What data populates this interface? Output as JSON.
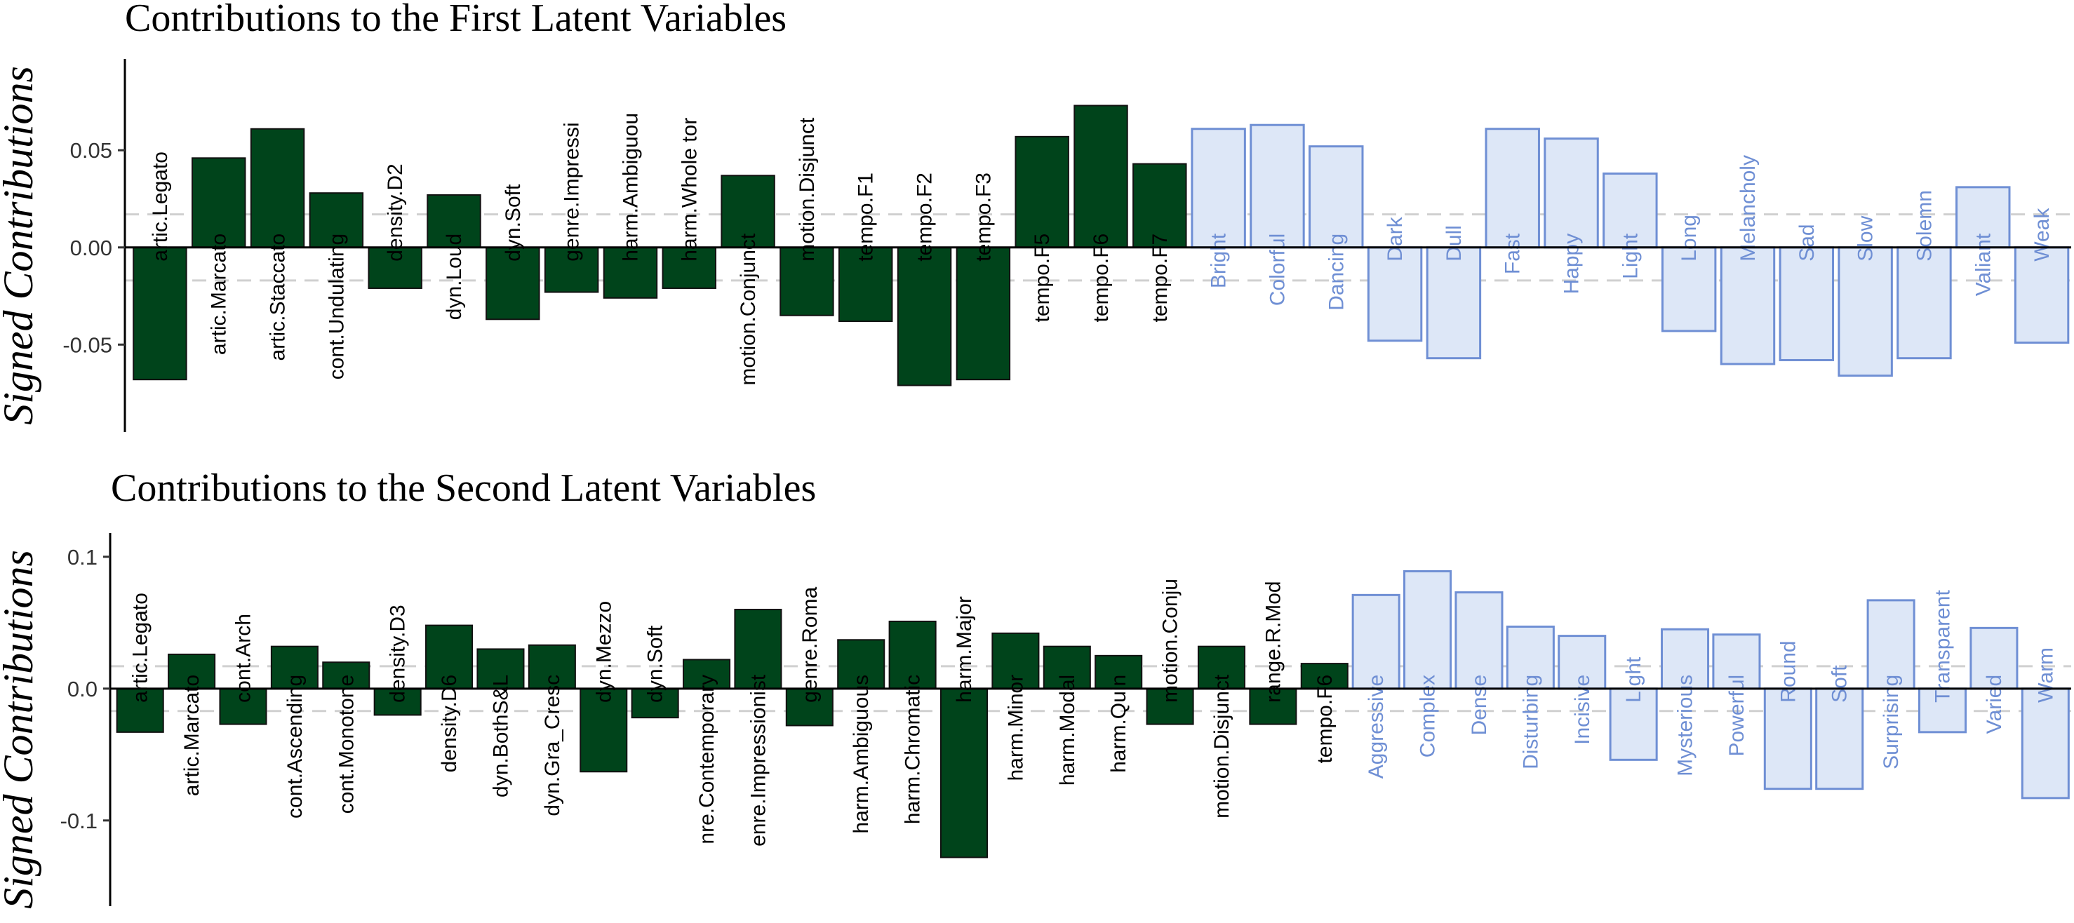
{
  "ylabel": "Signed Contributions",
  "colors": {
    "design_fill": "#00441b",
    "design_stroke": "#111111",
    "adjective_fill": "#dde7f7",
    "adjective_stroke": "#6f8fd4",
    "design_label": "#000000",
    "adjective_label": "#6f8fd4",
    "threshold_line": "#d0d0d0"
  },
  "chart_data": [
    {
      "type": "bar",
      "title": "Contributions to the First Latent Variables",
      "ylabel": "Signed Contributions",
      "xlabel": "",
      "ylim": [
        -0.095,
        0.097
      ],
      "yticks": [
        -0.05,
        0.0,
        0.05
      ],
      "ytick_labels": [
        "-0.05",
        "0.00",
        "0.05"
      ],
      "threshold": 0.017,
      "series": [
        {
          "group": "design",
          "categories": [
            "artic.Legato",
            "artic.Marcato",
            "artic.Staccato",
            "cont.Undulating",
            "density.D2",
            "dyn.Loud",
            "dyn.Soft",
            "genre.Impressi",
            "harm.Ambiguou",
            "harm.Whole tor",
            "motion.Conjunct",
            "motion.Disjunct",
            "tempo.F1",
            "tempo.F2",
            "tempo.F3",
            "tempo.F5",
            "tempo.F6",
            "tempo.F7"
          ],
          "values": [
            -0.068,
            0.046,
            0.061,
            0.028,
            -0.021,
            0.027,
            -0.037,
            -0.023,
            -0.026,
            -0.021,
            0.037,
            -0.035,
            -0.038,
            -0.071,
            -0.068,
            0.057,
            0.073,
            0.043
          ]
        },
        {
          "group": "adjectives",
          "categories": [
            "Bright",
            "Colorful",
            "Dancing",
            "Dark",
            "Dull",
            "Fast",
            "Happy",
            "Light",
            "Long",
            "Melancholy",
            "Sad",
            "Slow",
            "Solemn",
            "Valiant",
            "Weak"
          ],
          "values": [
            0.061,
            0.063,
            0.052,
            -0.048,
            -0.057,
            0.061,
            0.056,
            0.038,
            -0.043,
            -0.06,
            -0.058,
            -0.066,
            -0.057,
            0.031,
            -0.049
          ]
        }
      ]
    },
    {
      "type": "bar",
      "title": "Contributions to the Second Latent Variables",
      "ylabel": "Signed Contributions",
      "xlabel": "",
      "ylim": [
        -0.165,
        0.118
      ],
      "yticks": [
        -0.1,
        0.0,
        0.1
      ],
      "ytick_labels": [
        "-0.1",
        "0.0",
        "0.1"
      ],
      "threshold": 0.017,
      "series": [
        {
          "group": "design",
          "categories": [
            "artic.Legato",
            "artic.Marcato",
            "cont.Arch",
            "cont.Ascending",
            "cont.Monotone",
            "density.D3",
            "density.D6",
            "dyn.BothS&L",
            "dyn.Gra_Cresc",
            "dyn.Mezzo",
            "dyn.Soft",
            "genre.Contemporary",
            "genre.Impressionist",
            "genre.Roma",
            "harm.Ambiguous",
            "harm.Chromatic",
            "harm.Major",
            "harm.Minor",
            "harm.Modal",
            "harm.Quin",
            "motion.Conju",
            "motion.Disjunct",
            "range.R.Mod",
            "tempo.F6"
          ],
          "display": [
            "artic.Legato",
            "artic.Marcato",
            "cont.Arch",
            "cont.Ascending",
            "cont.Monotone",
            "density.D3",
            "density.D6",
            "dyn.BothS&L",
            "dyn.Gra_Cresc",
            "dyn.Mezzo",
            "dyn.Soft",
            "nre.Contemporary",
            "enre.Impressionist",
            "genre.Roma",
            "harm.Ambiguous",
            "harm.Chromatic",
            "harm.Major",
            "harm.Minor",
            "harm.Modal",
            "harm.Quin",
            "motion.Conju",
            "motion.Disjunct",
            "range.R.Mod",
            "tempo.F6"
          ],
          "values": [
            -0.033,
            0.026,
            -0.027,
            0.032,
            0.02,
            -0.02,
            0.048,
            0.03,
            0.033,
            -0.063,
            -0.022,
            0.022,
            0.06,
            -0.028,
            0.037,
            0.051,
            -0.128,
            0.042,
            0.032,
            0.025,
            -0.027,
            0.032,
            -0.027,
            0.019
          ]
        },
        {
          "group": "adjectives",
          "categories": [
            "Aggressive",
            "Complex",
            "Dense",
            "Disturbing",
            "Incisive",
            "Light",
            "Mysterious",
            "Powerful",
            "Round",
            "Soft",
            "Surprising",
            "Transparent",
            "Varied",
            "Warm"
          ],
          "values": [
            0.071,
            0.089,
            0.073,
            0.047,
            0.04,
            -0.054,
            0.045,
            0.041,
            -0.076,
            -0.076,
            0.067,
            -0.033,
            0.046,
            -0.083
          ]
        }
      ]
    }
  ]
}
